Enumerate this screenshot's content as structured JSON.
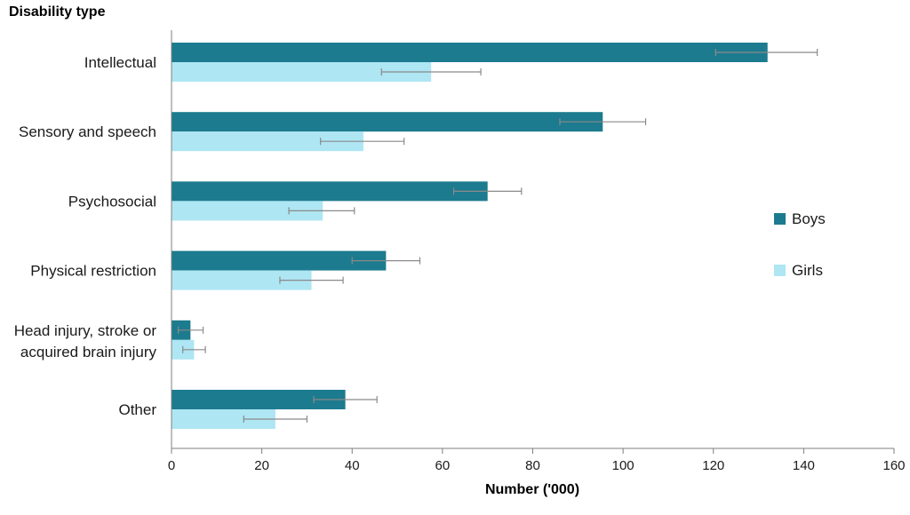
{
  "chart_data": {
    "type": "bar",
    "orientation": "horizontal",
    "title": "",
    "ylabel": "Disability type",
    "xlabel": "Number  ('000)",
    "categories": [
      "Intellectual",
      "Sensory and speech",
      "Psychosocial",
      "Physical restriction",
      "Head injury, stroke or acquired brain injury",
      "Other"
    ],
    "category_lines": [
      [
        "Intellectual"
      ],
      [
        "Sensory and speech"
      ],
      [
        "Psychosocial"
      ],
      [
        "Physical restriction"
      ],
      [
        "Head injury, stroke or",
        "acquired brain injury"
      ],
      [
        "Other"
      ]
    ],
    "series": [
      {
        "name": "Boys",
        "color": "#1c7b8e",
        "values": [
          132,
          95.5,
          70,
          47.5,
          4.2,
          38.5
        ],
        "error_low": [
          120.5,
          86,
          62.5,
          40,
          1.5,
          31.5
        ],
        "error_high": [
          143,
          105,
          77.5,
          55,
          7,
          45.5
        ]
      },
      {
        "name": "Girls",
        "color": "#aee6f3",
        "values": [
          57.5,
          42.5,
          33.5,
          31,
          5,
          23
        ],
        "error_low": [
          46.5,
          33,
          26,
          24,
          2.5,
          16
        ],
        "error_high": [
          68.5,
          51.5,
          40.5,
          38,
          7.5,
          30
        ]
      }
    ],
    "xlim": [
      0,
      160
    ],
    "xticks": [
      0,
      20,
      40,
      60,
      80,
      100,
      120,
      140,
      160
    ],
    "legend_position": "right",
    "grid": false
  }
}
